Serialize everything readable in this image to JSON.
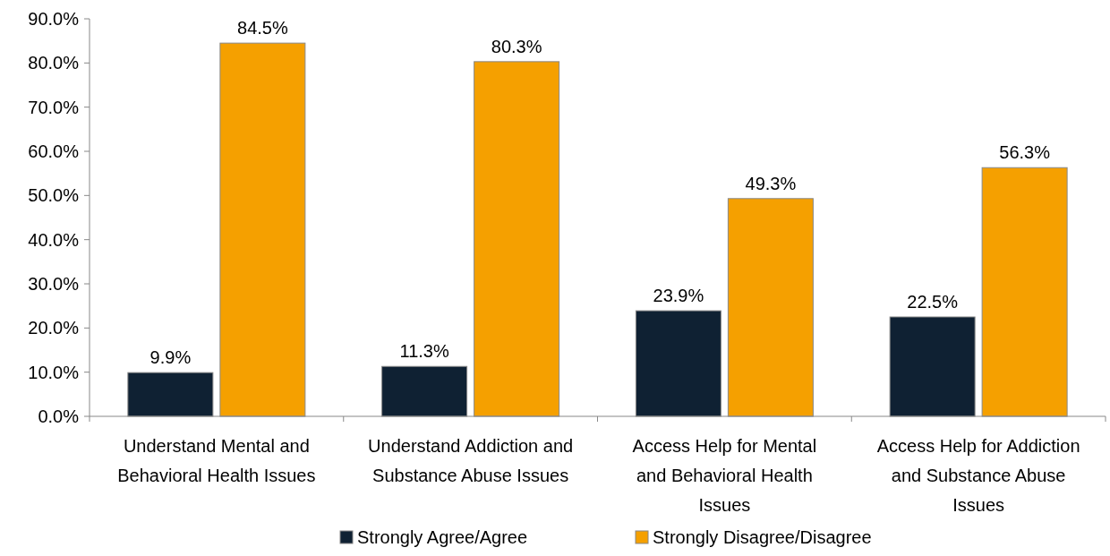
{
  "chart_data": {
    "type": "bar",
    "categories": [
      "Understand Mental and Behavioral Health Issues",
      "Understand Addiction and Substance Abuse Issues",
      "Access Help for Mental and Behavioral Health Issues",
      "Access Help for Addiction and Substance Abuse Issues"
    ],
    "series": [
      {
        "name": "Strongly Agree/Agree",
        "color": "#0f2133",
        "values": [
          9.9,
          11.3,
          23.9,
          22.5
        ],
        "value_labels": [
          "9.9%",
          "11.3%",
          "23.9%",
          "22.5%"
        ]
      },
      {
        "name": "Strongly Disagree/Disagree",
        "color": "#f5a000",
        "values": [
          84.5,
          80.3,
          49.3,
          56.3
        ],
        "value_labels": [
          "84.5%",
          "80.3%",
          "49.3%",
          "56.3%"
        ]
      }
    ],
    "ylim": [
      0,
      90
    ],
    "yticks": [
      {
        "value": 0,
        "label": "0.0%"
      },
      {
        "value": 10,
        "label": "10.0%"
      },
      {
        "value": 20,
        "label": "20.0%"
      },
      {
        "value": 30,
        "label": "30.0%"
      },
      {
        "value": 40,
        "label": "40.0%"
      },
      {
        "value": 50,
        "label": "50.0%"
      },
      {
        "value": 60,
        "label": "60.0%"
      },
      {
        "value": 70,
        "label": "70.0%"
      },
      {
        "value": 80,
        "label": "80.0%"
      },
      {
        "value": 90,
        "label": "90.0%"
      }
    ],
    "legend": "bottom"
  }
}
